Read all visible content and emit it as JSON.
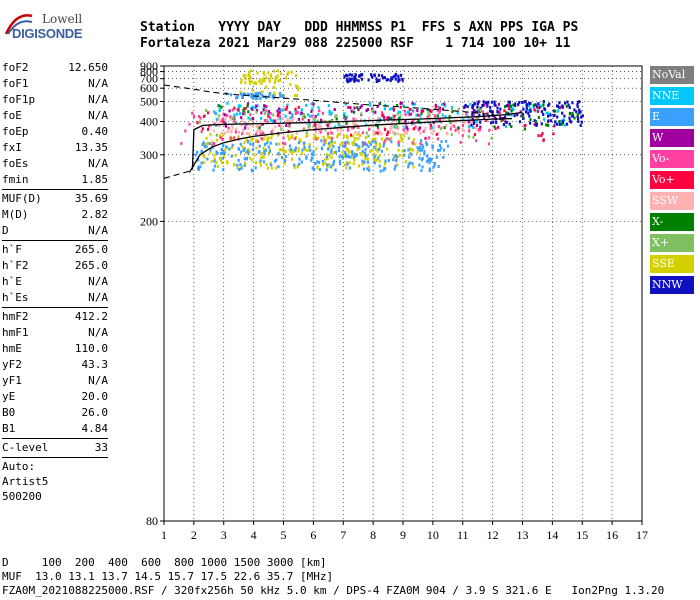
{
  "logo": {
    "line1": "Lowell",
    "line2": "DIGISONDE"
  },
  "header": {
    "line1": "Station   YYYY DAY   DDD HHMMSS P1  FFS S AXN PPS IGA PS",
    "line2": "Fortaleza 2021 Mar29 088 225000 RSF    1 714 100 10+ 11"
  },
  "params": {
    "group1": [
      {
        "k": "foF2",
        "v": "12.650"
      },
      {
        "k": "foF1",
        "v": "N/A"
      },
      {
        "k": "foF1p",
        "v": "N/A"
      },
      {
        "k": "foE",
        "v": "N/A"
      },
      {
        "k": "foEp",
        "v": "0.40"
      },
      {
        "k": "fxI",
        "v": "13.35"
      },
      {
        "k": "foEs",
        "v": "N/A"
      },
      {
        "k": "fmin",
        "v": "1.85"
      }
    ],
    "group2": [
      {
        "k": "MUF(D)",
        "v": "35.69"
      },
      {
        "k": "M(D)",
        "v": "2.82"
      },
      {
        "k": "D",
        "v": "N/A"
      }
    ],
    "group3": [
      {
        "k": "h`F",
        "v": "265.0"
      },
      {
        "k": "h`F2",
        "v": "265.0"
      },
      {
        "k": "h`E",
        "v": "N/A"
      },
      {
        "k": "h`Es",
        "v": "N/A"
      }
    ],
    "group4": [
      {
        "k": "hmF2",
        "v": "412.2"
      },
      {
        "k": "hmF1",
        "v": "N/A"
      },
      {
        "k": "hmE",
        "v": "110.0"
      },
      {
        "k": "yF2",
        "v": "43.3"
      },
      {
        "k": "yF1",
        "v": "N/A"
      },
      {
        "k": "yE",
        "v": "20.0"
      },
      {
        "k": "B0",
        "v": "26.0"
      },
      {
        "k": "B1",
        "v": "4.84"
      }
    ],
    "group5": [
      {
        "k": "C-level",
        "v": "33"
      }
    ],
    "auto": [
      "Auto:",
      "Artist5",
      "500200"
    ]
  },
  "legend": [
    {
      "label": "NoVal",
      "color": "#7f7f7f"
    },
    {
      "label": "NNE",
      "color": "#00c8ff"
    },
    {
      "label": "E",
      "color": "#3aa0ff"
    },
    {
      "label": "W",
      "color": "#a000a0"
    },
    {
      "label": "Vo-",
      "color": "#ff40a0"
    },
    {
      "label": "Vo+",
      "color": "#ff0040"
    },
    {
      "label": "SSW",
      "color": "#ffb0b0"
    },
    {
      "label": "X-",
      "color": "#008000"
    },
    {
      "label": "X+",
      "color": "#80c060"
    },
    {
      "label": "SSE",
      "color": "#d4d000"
    },
    {
      "label": "NNW",
      "color": "#1010c0"
    }
  ],
  "footer": {
    "line1": "D     100  200  400  600  800 1000 1500 3000 [km]",
    "line2": "MUF  13.0 13.1 13.7 14.5 15.7 17.5 22.6 35.7 [MHz]",
    "line3": "FZA0M_2021088225000.RSF / 320fx256h 50 kHz 5.0 km / DPS-4 FZA0M 904 / 3.9 S 321.6 E   Ion2Png 1.3.20"
  },
  "chart_data": {
    "type": "scatter",
    "x_ticks": [
      "1",
      "2",
      "3",
      "4",
      "5",
      "6",
      "7",
      "8",
      "9",
      "10",
      "11",
      "12",
      "13",
      "14",
      "15",
      "16",
      "17"
    ],
    "y_ticks": [
      "80",
      "200",
      "300",
      "400",
      "500",
      "600",
      "700",
      "800",
      "900"
    ],
    "xlim": [
      1,
      17
    ],
    "y_scale": "reciprocal",
    "ylim": [
      80,
      900
    ],
    "grid": true,
    "legend_position": "right",
    "profile_curve": {
      "x": [
        1.85,
        2.2,
        2.6,
        3.0,
        3.5,
        4.0,
        4.5,
        5.0,
        6.0,
        7.0,
        8.0,
        9.0,
        10.0,
        11.0,
        12.0,
        12.65
      ],
      "y": [
        265,
        300,
        318,
        330,
        340,
        348,
        354,
        360,
        370,
        378,
        386,
        392,
        398,
        404,
        410,
        412
      ]
    },
    "trace_upper": {
      "x": [
        1.0,
        1.5,
        2.0,
        2.5,
        3.0,
        3.5,
        4.0,
        4.5,
        5.0,
        5.5,
        6.0,
        6.5,
        7.0,
        7.5,
        8.0,
        9.0,
        10.0,
        11.0,
        12.0
      ],
      "y": [
        630,
        610,
        590,
        570,
        555,
        545,
        538,
        530,
        522,
        515,
        508,
        500,
        492,
        485,
        478,
        468,
        456,
        444,
        430
      ]
    },
    "trace_lower": {
      "x": [
        1.0,
        1.5,
        1.9
      ],
      "y": [
        255,
        262,
        268
      ]
    },
    "trace_xo": {
      "x": [
        1.95,
        2.0,
        2.3,
        2.8,
        3.5,
        4.5,
        5.5,
        6.5,
        7.5,
        8.5,
        9.5,
        10.5,
        11.5,
        12.5,
        13.0
      ],
      "y": [
        270,
        370,
        385,
        388,
        390,
        392,
        395,
        398,
        402,
        406,
        410,
        415,
        420,
        430,
        440
      ]
    },
    "echo_clusters": [
      {
        "color": "SSE",
        "x": [
          2.2,
          9.5
        ],
        "y": [
          275,
          360
        ],
        "n": 260
      },
      {
        "color": "E",
        "x": [
          2.0,
          10.5
        ],
        "y": [
          270,
          340
        ],
        "n": 260
      },
      {
        "color": "SSW",
        "x": [
          2.5,
          11.5
        ],
        "y": [
          360,
          420
        ],
        "n": 180
      },
      {
        "color": "Vo-",
        "x": [
          1.5,
          12.0
        ],
        "y": [
          330,
          460
        ],
        "n": 140
      },
      {
        "color": "NNE",
        "x": [
          2.5,
          14.5
        ],
        "y": [
          380,
          500
        ],
        "n": 140
      },
      {
        "color": "W",
        "x": [
          3.0,
          14.5
        ],
        "y": [
          380,
          500
        ],
        "n": 100
      },
      {
        "color": "NNW",
        "x": [
          11.0,
          15.0
        ],
        "y": [
          390,
          510
        ],
        "n": 140
      },
      {
        "color": "X-",
        "x": [
          2.5,
          15.0
        ],
        "y": [
          370,
          500
        ],
        "n": 60
      },
      {
        "color": "X+",
        "x": [
          2.0,
          12.0
        ],
        "y": [
          340,
          470
        ],
        "n": 60
      },
      {
        "color": "Vo+",
        "x": [
          2.0,
          14.0
        ],
        "y": [
          340,
          480
        ],
        "n": 60
      },
      {
        "color": "SSE",
        "x": [
          3.5,
          5.5
        ],
        "y": [
          550,
          840
        ],
        "n": 70
      },
      {
        "color": "E",
        "x": [
          3.0,
          5.0
        ],
        "y": [
          530,
          570
        ],
        "n": 40
      },
      {
        "color": "NNW",
        "x": [
          7.0,
          9.0
        ],
        "y": [
          680,
          780
        ],
        "n": 60
      }
    ]
  }
}
